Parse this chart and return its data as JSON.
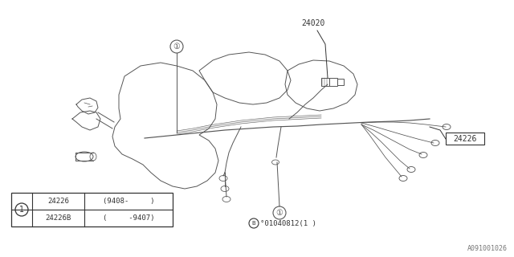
{
  "background_color": "#ffffff",
  "diagram_color": "#555555",
  "text_color": "#333333",
  "label_24020": "24020",
  "label_24226": "24226",
  "bottom_code": "°01040812(1 )",
  "table": {
    "rows": [
      {
        "part": "24226B",
        "condition": "(     -9407)"
      },
      {
        "part": "24226",
        "condition": "(9408-     )"
      }
    ]
  },
  "watermark": "A091001026",
  "fig_width": 6.4,
  "fig_height": 3.2,
  "dpi": 100
}
